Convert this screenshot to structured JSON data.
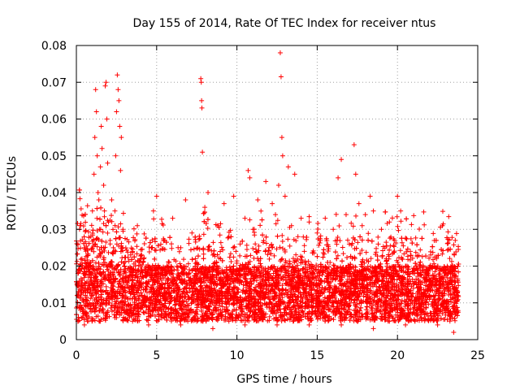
{
  "chart_data": {
    "type": "scatter",
    "title": "Day 155 of 2014, Rate Of TEC Index for receiver ntus",
    "xlabel": "GPS time / hours",
    "ylabel": "ROTI / TECUs",
    "xlim": [
      0,
      25
    ],
    "ylim": [
      0,
      0.08
    ],
    "xticks": [
      0,
      5,
      10,
      15,
      20,
      25
    ],
    "xtick_labels": [
      "0",
      "5",
      "10",
      "15",
      "20",
      "25"
    ],
    "yticks": [
      0,
      0.01,
      0.02,
      0.03,
      0.04,
      0.05,
      0.06,
      0.07,
      0.08
    ],
    "ytick_labels": [
      "0",
      "0.01",
      "0.02",
      "0.03",
      "0.04",
      "0.05",
      "0.06",
      "0.07",
      "0.08"
    ],
    "grid": true,
    "marker": "+",
    "color": "#ff0000",
    "series": [
      {
        "name": "ROTI",
        "points": [
          [
            0.05,
            0.012
          ],
          [
            0.1,
            0.018
          ],
          [
            0.2,
            0.03
          ],
          [
            0.25,
            0.008
          ],
          [
            0.3,
            0.015
          ],
          [
            0.35,
            0.022
          ],
          [
            0.4,
            0.006
          ],
          [
            0.45,
            0.011
          ],
          [
            0.5,
            0.025
          ],
          [
            0.6,
            0.009
          ],
          [
            0.7,
            0.014
          ],
          [
            0.8,
            0.02
          ],
          [
            0.9,
            0.028
          ],
          [
            1.0,
            0.035
          ],
          [
            1.1,
            0.045
          ],
          [
            1.15,
            0.055
          ],
          [
            1.2,
            0.068
          ],
          [
            1.25,
            0.062
          ],
          [
            1.3,
            0.05
          ],
          [
            1.35,
            0.04
          ],
          [
            1.4,
            0.038
          ],
          [
            1.45,
            0.03
          ],
          [
            1.5,
            0.047
          ],
          [
            1.55,
            0.058
          ],
          [
            1.6,
            0.052
          ],
          [
            1.7,
            0.042
          ],
          [
            1.75,
            0.035
          ],
          [
            1.8,
            0.069
          ],
          [
            1.85,
            0.07
          ],
          [
            1.9,
            0.06
          ],
          [
            1.95,
            0.048
          ],
          [
            2.0,
            0.032
          ],
          [
            2.1,
            0.027
          ],
          [
            2.2,
            0.038
          ],
          [
            2.3,
            0.025
          ],
          [
            2.4,
            0.035
          ],
          [
            2.45,
            0.05
          ],
          [
            2.5,
            0.062
          ],
          [
            2.55,
            0.072
          ],
          [
            2.6,
            0.068
          ],
          [
            2.65,
            0.065
          ],
          [
            2.7,
            0.058
          ],
          [
            2.75,
            0.046
          ],
          [
            2.8,
            0.055
          ],
          [
            2.9,
            0.03
          ],
          [
            3.0,
            0.02
          ],
          [
            3.2,
            0.017
          ],
          [
            3.5,
            0.024
          ],
          [
            3.8,
            0.031
          ],
          [
            4.0,
            0.015
          ],
          [
            4.2,
            0.022
          ],
          [
            4.5,
            0.019
          ],
          [
            4.8,
            0.035
          ],
          [
            5.0,
            0.039
          ],
          [
            5.2,
            0.013
          ],
          [
            5.5,
            0.027
          ],
          [
            5.8,
            0.018
          ],
          [
            6.0,
            0.033
          ],
          [
            6.2,
            0.011
          ],
          [
            6.5,
            0.025
          ],
          [
            6.8,
            0.038
          ],
          [
            7.0,
            0.016
          ],
          [
            7.2,
            0.029
          ],
          [
            7.5,
            0.021
          ],
          [
            7.75,
            0.071
          ],
          [
            7.78,
            0.07
          ],
          [
            7.8,
            0.065
          ],
          [
            7.82,
            0.063
          ],
          [
            7.85,
            0.051
          ],
          [
            8.0,
            0.036
          ],
          [
            8.2,
            0.04
          ],
          [
            8.5,
            0.023
          ],
          [
            8.8,
            0.031
          ],
          [
            9.0,
            0.017
          ],
          [
            9.2,
            0.037
          ],
          [
            9.5,
            0.028
          ],
          [
            9.8,
            0.039
          ],
          [
            10.0,
            0.014
          ],
          [
            10.2,
            0.026
          ],
          [
            10.5,
            0.033
          ],
          [
            10.7,
            0.046
          ],
          [
            10.8,
            0.044
          ],
          [
            11.0,
            0.03
          ],
          [
            11.3,
            0.038
          ],
          [
            11.5,
            0.02
          ],
          [
            11.8,
            0.043
          ],
          [
            12.0,
            0.025
          ],
          [
            12.2,
            0.037
          ],
          [
            12.4,
            0.034
          ],
          [
            12.6,
            0.042
          ],
          [
            12.7,
            0.078
          ],
          [
            12.75,
            0.0715
          ],
          [
            12.8,
            0.055
          ],
          [
            12.85,
            0.05
          ],
          [
            13.0,
            0.039
          ],
          [
            13.2,
            0.047
          ],
          [
            13.4,
            0.031
          ],
          [
            13.6,
            0.045
          ],
          [
            13.8,
            0.028
          ],
          [
            14.0,
            0.033
          ],
          [
            14.2,
            0.024
          ],
          [
            14.5,
            0.032
          ],
          [
            14.8,
            0.019
          ],
          [
            15.0,
            0.029
          ],
          [
            15.2,
            0.027
          ],
          [
            15.5,
            0.033
          ],
          [
            15.8,
            0.021
          ],
          [
            16.0,
            0.03
          ],
          [
            16.3,
            0.044
          ],
          [
            16.5,
            0.049
          ],
          [
            16.8,
            0.034
          ],
          [
            17.0,
            0.026
          ],
          [
            17.3,
            0.053
          ],
          [
            17.4,
            0.045
          ],
          [
            17.6,
            0.037
          ],
          [
            17.8,
            0.031
          ],
          [
            18.0,
            0.034
          ],
          [
            18.3,
            0.039
          ],
          [
            18.5,
            0.035
          ],
          [
            18.8,
            0.026
          ],
          [
            19.0,
            0.03
          ],
          [
            19.3,
            0.022
          ],
          [
            19.5,
            0.032
          ],
          [
            19.8,
            0.027
          ],
          [
            20.0,
            0.039
          ],
          [
            20.2,
            0.035
          ],
          [
            20.5,
            0.02
          ],
          [
            20.8,
            0.024
          ],
          [
            21.0,
            0.014
          ],
          [
            21.3,
            0.018
          ],
          [
            21.6,
            0.012
          ],
          [
            22.0,
            0.016
          ],
          [
            22.3,
            0.02
          ],
          [
            22.6,
            0.011
          ],
          [
            22.8,
            0.031
          ],
          [
            23.0,
            0.019
          ],
          [
            23.2,
            0.013
          ],
          [
            23.4,
            0.015
          ],
          [
            23.6,
            0.027
          ],
          [
            23.7,
            0.012
          ],
          [
            0.5,
            0.004
          ],
          [
            1.5,
            0.005
          ],
          [
            2.5,
            0.006
          ],
          [
            3.5,
            0.005
          ],
          [
            4.5,
            0.004
          ],
          [
            5.5,
            0.006
          ],
          [
            6.5,
            0.004
          ],
          [
            7.5,
            0.005
          ],
          [
            8.5,
            0.003
          ],
          [
            9.5,
            0.005
          ],
          [
            10.5,
            0.004
          ],
          [
            11.5,
            0.006
          ],
          [
            12.5,
            0.004
          ],
          [
            13.5,
            0.005
          ],
          [
            14.5,
            0.004
          ],
          [
            15.5,
            0.006
          ],
          [
            16.5,
            0.004
          ],
          [
            17.5,
            0.005
          ],
          [
            18.5,
            0.003
          ],
          [
            19.5,
            0.005
          ],
          [
            20.5,
            0.004
          ],
          [
            21.5,
            0.006
          ],
          [
            22.5,
            0.004
          ],
          [
            23.5,
            0.002
          ]
        ]
      }
    ]
  }
}
